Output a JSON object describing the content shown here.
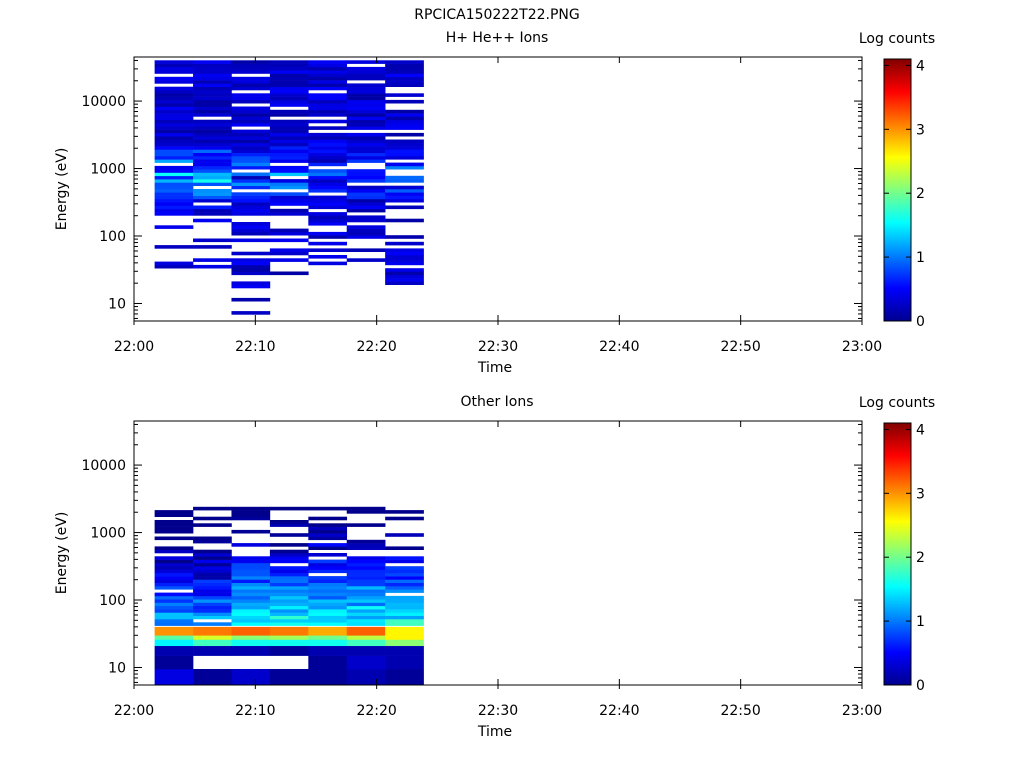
{
  "page_title": "RPCICA150222T22.PNG",
  "chart_data": [
    {
      "type": "heatmap",
      "title": "H+ He++ Ions",
      "xlabel": "Time",
      "ylabel": "Energy (eV)",
      "y_scale": "log",
      "ylim": [
        5.5,
        45000
      ],
      "x_range": [
        "22:00",
        "23:00"
      ],
      "x_ticks": [
        "22:00",
        "22:10",
        "22:20",
        "22:30",
        "22:40",
        "22:50",
        "23:00"
      ],
      "y_ticks": [
        "10",
        "100",
        "1000",
        "10000"
      ],
      "colorbar": {
        "label": "Log counts",
        "min": 0,
        "max": 4.1,
        "ticks": [
          "0",
          "1",
          "2",
          "3",
          "4"
        ]
      },
      "time_bins": [
        "22:01:42",
        "22:04:52",
        "22:08:02",
        "22:11:12",
        "22:14:22",
        "22:17:32",
        "22:20:42"
      ],
      "bin_end": "22:23:52",
      "data_extent": {
        "energy_max": 40000,
        "energy_min_by_bin": [
          28,
          33,
          6,
          28,
          33,
          33,
          11
        ]
      },
      "description_values": {
        "max_log_counts": 1.7,
        "typical_log_counts": 0.3
      }
    },
    {
      "type": "heatmap",
      "title": "Other Ions",
      "xlabel": "Time",
      "ylabel": "Energy (eV)",
      "y_scale": "log",
      "ylim": [
        5.5,
        45000
      ],
      "x_range": [
        "22:00",
        "23:00"
      ],
      "x_ticks": [
        "22:00",
        "22:10",
        "22:20",
        "22:30",
        "22:40",
        "22:50",
        "23:00"
      ],
      "y_ticks": [
        "10",
        "100",
        "1000",
        "10000"
      ],
      "colorbar": {
        "label": "Log counts",
        "min": 0,
        "max": 4.1,
        "ticks": [
          "0",
          "1",
          "2",
          "3",
          "4"
        ]
      },
      "time_bins": [
        "22:01:42",
        "22:04:52",
        "22:08:02",
        "22:11:12",
        "22:14:22",
        "22:17:32",
        "22:20:42"
      ],
      "bin_end": "22:23:52",
      "data_extent": {
        "energy_max": 2200,
        "energy_min": 5.5
      },
      "peak_band": {
        "energy_low": 30,
        "energy_high": 40,
        "log_counts": [
          3.0,
          3.1,
          3.2,
          3.1,
          2.9,
          3.2,
          2.6
        ]
      },
      "low_energy_rows": [
        {
          "energy_low": 5.5,
          "energy_high": 9.5,
          "log_counts": [
            0.4,
            0.1,
            0.3,
            0.1,
            0.1,
            0.2,
            0.1
          ]
        },
        {
          "energy_low": 9.5,
          "energy_high": 15,
          "log_counts": [
            0.1,
            null,
            null,
            null,
            0.1,
            0.3,
            0.2
          ]
        },
        {
          "energy_low": 15,
          "energy_high": 21,
          "log_counts": [
            0.2,
            0.2,
            0.2,
            0.1,
            0.2,
            0.2,
            0.2
          ]
        },
        {
          "energy_low": 21,
          "energy_high": 26,
          "log_counts": [
            1.5,
            1.8,
            1.6,
            1.6,
            1.6,
            1.8,
            2.1
          ]
        },
        {
          "energy_low": 26,
          "energy_high": 30,
          "log_counts": [
            1.9,
            2.4,
            2.1,
            2.2,
            2.0,
            2.3,
            2.6
          ]
        }
      ]
    }
  ]
}
